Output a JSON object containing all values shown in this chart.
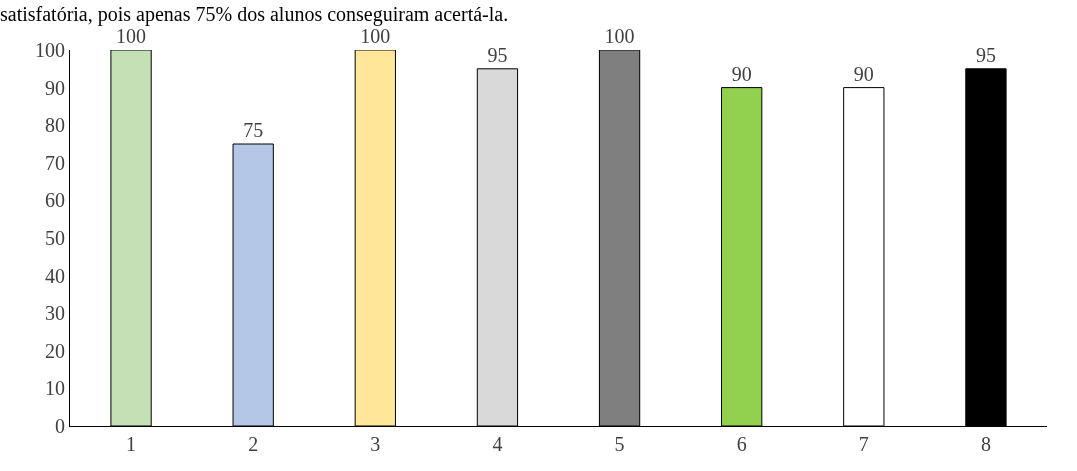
{
  "chart_data": {
    "type": "bar",
    "title": "satisfatória, pois apenas 75% dos alunos conseguiram acertá-la.",
    "categories": [
      "1",
      "2",
      "3",
      "4",
      "5",
      "6",
      "7",
      "8"
    ],
    "values": [
      100,
      75,
      100,
      95,
      100,
      90,
      90,
      95
    ],
    "colors": [
      "#c5e0b4",
      "#b4c7e7",
      "#ffe699",
      "#d9d9d9",
      "#7f7f7f",
      "#92d050",
      "#ffffff",
      "#000000"
    ],
    "ylim": [
      0,
      100
    ],
    "yticks": [
      0,
      10,
      20,
      30,
      40,
      50,
      60,
      70,
      80,
      90,
      100
    ],
    "data_labels": true
  }
}
